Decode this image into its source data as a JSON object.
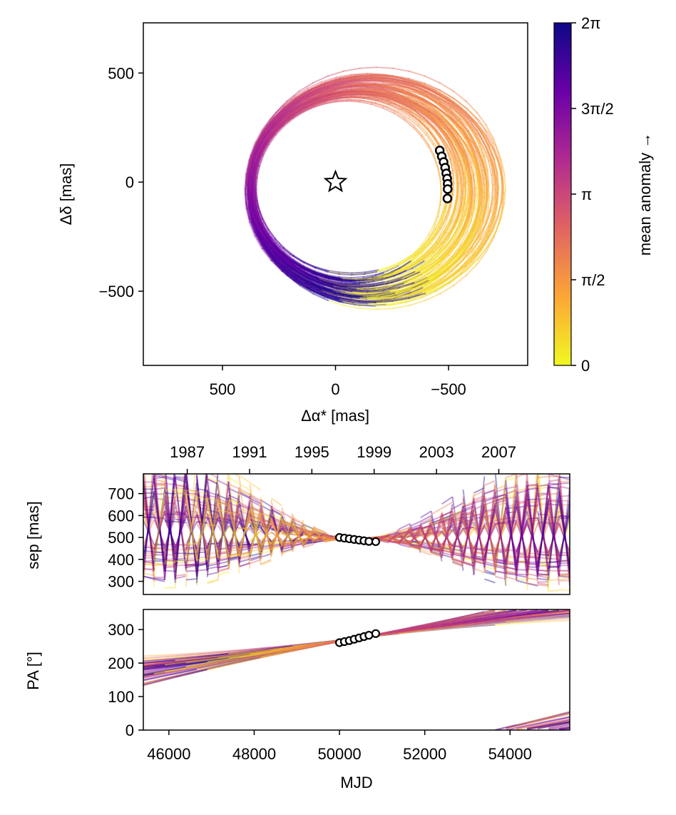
{
  "chart_data": [
    {
      "type": "line",
      "name": "orbit-sky-plot",
      "xlabel": "Δα* [mas]",
      "ylabel": "Δδ [mas]",
      "xlim": [
        850,
        -850
      ],
      "ylim": [
        -840,
        730
      ],
      "x_ticks": [
        500,
        0,
        -500
      ],
      "x_tick_labels": [
        "500",
        "0",
        "−500"
      ],
      "y_ticks": [
        500,
        0,
        -500
      ],
      "y_tick_labels": [
        "500",
        "0",
        "−500"
      ],
      "star_marker": {
        "x": 0,
        "y": 0
      },
      "observations": {
        "x": [
          -461,
          -470,
          -478,
          -485,
          -490,
          -494,
          -496,
          -496,
          -495
        ],
        "y": [
          145,
          118,
          92,
          66,
          40,
          16,
          -8,
          -32,
          -75
        ]
      },
      "orbit_model": {
        "center_x": [
          -55,
          -175
        ],
        "center_y": [
          -70,
          0
        ],
        "semi_major": [
          420,
          565
        ],
        "semi_minor": [
          405,
          520
        ],
        "n_orbits": 80
      }
    },
    {
      "type": "colorbar",
      "name": "mean-anomaly-colorbar",
      "label": "mean anomaly →",
      "range": [
        0,
        6.283185
      ],
      "ticks": [
        0,
        1.570796,
        3.141593,
        4.712389,
        6.283185
      ],
      "tick_labels": [
        "0",
        "π/2",
        "π",
        "3π/2",
        "2π"
      ],
      "colormap_stops": [
        "#f0f921",
        "#fca636",
        "#e16462",
        "#b12a90",
        "#6a00a8",
        "#0d0887"
      ]
    },
    {
      "type": "line",
      "name": "separation-plot",
      "xlabel": "",
      "ylabel": "sep [mas]",
      "xlim": [
        45400,
        55400
      ],
      "ylim": [
        240,
        790
      ],
      "y_ticks": [
        300,
        400,
        500,
        600,
        700
      ],
      "y_tick_labels": [
        "300",
        "400",
        "500",
        "600",
        "700"
      ],
      "top_axis_ticks_mjd": [
        46430,
        47891,
        49352,
        50813,
        52275,
        53736
      ],
      "top_axis_tick_labels": [
        "1987",
        "1991",
        "1995",
        "1999",
        "2003",
        "2007"
      ],
      "observations": {
        "x": [
          50000,
          50115,
          50230,
          50345,
          50460,
          50575,
          50690,
          50850
        ],
        "y": [
          500,
          497,
          494,
          491,
          488,
          485,
          482,
          481
        ]
      }
    },
    {
      "type": "line",
      "name": "position-angle-plot",
      "xlabel": "MJD",
      "ylabel": "PA [°]",
      "xlim": [
        45400,
        55400
      ],
      "ylim": [
        0,
        360
      ],
      "x_ticks": [
        46000,
        48000,
        50000,
        52000,
        54000
      ],
      "x_tick_labels": [
        "46000",
        "48000",
        "50000",
        "52000",
        "54000"
      ],
      "y_ticks": [
        0,
        100,
        200,
        300
      ],
      "y_tick_labels": [
        "0",
        "100",
        "200",
        "300"
      ],
      "observations": {
        "x": [
          50000,
          50115,
          50230,
          50345,
          50460,
          50575,
          50690,
          50850
        ],
        "y": [
          261,
          264,
          267,
          271,
          275,
          279,
          283,
          288
        ]
      }
    }
  ]
}
